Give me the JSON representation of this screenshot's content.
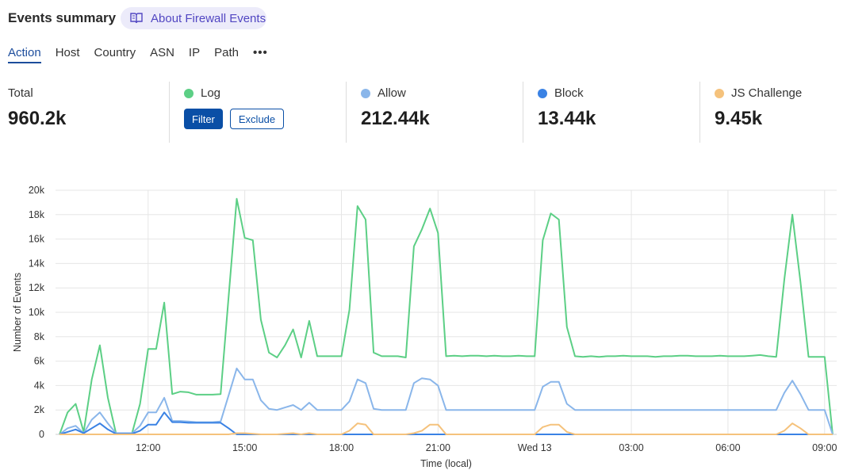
{
  "header": {
    "title": "Events summary",
    "link": "About Firewall Events"
  },
  "tabs": [
    "Action",
    "Host",
    "Country",
    "ASN",
    "IP",
    "Path"
  ],
  "stats": [
    {
      "label": "Total",
      "value": "960.2k"
    },
    {
      "label": "Log",
      "buttons": [
        "Filter",
        "Exclude"
      ]
    },
    {
      "label": "Allow",
      "value": "212.44k"
    },
    {
      "label": "Block",
      "value": "13.44k"
    },
    {
      "label": "JS Challenge",
      "value": "9.45k"
    }
  ],
  "chart_data": {
    "type": "line",
    "y_label": "Number of Events",
    "x_label": "Time (local)",
    "grid": true,
    "x": [
      9.25,
      9.5,
      9.75,
      10,
      10.25,
      10.5,
      10.75,
      11,
      11.25,
      11.5,
      11.75,
      12,
      12.25,
      12.5,
      12.75,
      13,
      13.25,
      13.5,
      13.75,
      14,
      14.25,
      14.5,
      14.75,
      15,
      15.25,
      15.5,
      15.75,
      16,
      16.25,
      16.5,
      16.75,
      17,
      17.25,
      17.5,
      17.75,
      18,
      18.25,
      18.5,
      18.75,
      19,
      19.25,
      19.5,
      19.75,
      20,
      20.25,
      20.5,
      20.75,
      21,
      21.25,
      21.5,
      21.75,
      22,
      22.25,
      22.5,
      22.75,
      23,
      23.25,
      23.5,
      23.75,
      24,
      24.25,
      24.5,
      24.75,
      25,
      25.25,
      25.5,
      25.75,
      26,
      26.25,
      26.5,
      26.75,
      27,
      27.25,
      27.5,
      27.75,
      28,
      28.25,
      28.5,
      28.75,
      29,
      29.25,
      29.5,
      29.75,
      30,
      30.25,
      30.5,
      30.75,
      31,
      31.25,
      31.5,
      31.75,
      32,
      32.25,
      32.5,
      32.75,
      33,
      33.25
    ],
    "xlim": [
      9.125,
      33.375
    ],
    "xticks": [
      {
        "value": 12,
        "label": "12:00"
      },
      {
        "value": 15,
        "label": "15:00"
      },
      {
        "value": 18,
        "label": "18:00"
      },
      {
        "value": 21,
        "label": "21:00"
      },
      {
        "value": 24,
        "label": "Wed 13"
      },
      {
        "value": 27,
        "label": "03:00"
      },
      {
        "value": 30,
        "label": "06:00"
      },
      {
        "value": 33,
        "label": "09:00"
      }
    ],
    "ylim": [
      0,
      20000
    ],
    "yticks": [
      0,
      {
        "value": 2000,
        "label": "2k"
      },
      {
        "value": 4000,
        "label": "4k"
      },
      {
        "value": 6000,
        "label": "6k"
      },
      {
        "value": 8000,
        "label": "8k"
      },
      {
        "value": 10000,
        "label": "10k"
      },
      {
        "value": 12000,
        "label": "12k"
      },
      {
        "value": 14000,
        "label": "14k"
      },
      {
        "value": 16000,
        "label": "16k"
      },
      {
        "value": 18000,
        "label": "18k"
      },
      {
        "value": 20000,
        "label": "20k"
      }
    ],
    "series": [
      {
        "color": "#5ccf85",
        "values": [
          0,
          1800,
          2500,
          200,
          4500,
          7300,
          3000,
          100,
          100,
          100,
          2500,
          7000,
          7000,
          10800,
          3300,
          3500,
          3450,
          3250,
          3250,
          3250,
          3300,
          11300,
          19300,
          16100,
          15900,
          9400,
          6700,
          6300,
          7300,
          8600,
          6300,
          9300,
          6400,
          6400,
          6400,
          6400,
          10200,
          18700,
          17600,
          6700,
          6400,
          6400,
          6400,
          6300,
          15400,
          16800,
          18500,
          16500,
          6400,
          6450,
          6400,
          6450,
          6450,
          6400,
          6450,
          6400,
          6400,
          6450,
          6400,
          6400,
          15900,
          18100,
          17600,
          8800,
          6400,
          6350,
          6400,
          6350,
          6400,
          6400,
          6450,
          6400,
          6400,
          6400,
          6350,
          6400,
          6400,
          6450,
          6450,
          6400,
          6400,
          6400,
          6450,
          6400,
          6400,
          6400,
          6450,
          6500,
          6400,
          6350,
          12700,
          18000,
          12500,
          6350,
          6350,
          6350,
          0
        ]
      },
      {
        "color": "#8ab6ea",
        "values": [
          0,
          500,
          700,
          100,
          1200,
          1800,
          900,
          100,
          100,
          100,
          700,
          1800,
          1800,
          3000,
          1100,
          1100,
          1050,
          1000,
          1000,
          1000,
          1050,
          3200,
          5400,
          4500,
          4500,
          2800,
          2100,
          2000,
          2200,
          2400,
          2000,
          2600,
          2000,
          2000,
          2000,
          2000,
          2700,
          4500,
          4200,
          2100,
          2000,
          2000,
          2000,
          2000,
          4200,
          4600,
          4500,
          4000,
          2000,
          2000,
          2000,
          2000,
          2000,
          2000,
          2000,
          2000,
          2000,
          2000,
          2000,
          2000,
          3900,
          4300,
          4300,
          2500,
          2000,
          2000,
          2000,
          2000,
          2000,
          2000,
          2000,
          2000,
          2000,
          2000,
          2000,
          2000,
          2000,
          2000,
          2000,
          2000,
          2000,
          2000,
          2000,
          2000,
          2000,
          2000,
          2000,
          2000,
          2000,
          2000,
          3400,
          4400,
          3300,
          2000,
          2000,
          2000,
          0
        ]
      },
      {
        "color": "#3a82e4",
        "values": [
          0,
          200,
          400,
          100,
          500,
          900,
          400,
          50,
          50,
          50,
          300,
          800,
          800,
          1800,
          1000,
          1000,
          950,
          950,
          950,
          950,
          950,
          500,
          0,
          0,
          0,
          0,
          0,
          0,
          0,
          0,
          0,
          0,
          0,
          0,
          0,
          0,
          0,
          0,
          0,
          0,
          0,
          0,
          0,
          0,
          0,
          0,
          0,
          0,
          0,
          0,
          0,
          0,
          0,
          0,
          0,
          0,
          0,
          0,
          0,
          0,
          0,
          0,
          0,
          0,
          0,
          0,
          0,
          0,
          0,
          0,
          0,
          0,
          0,
          0,
          0,
          0,
          0,
          0,
          0,
          0,
          0,
          0,
          0,
          0,
          0,
          0,
          0,
          0,
          0,
          0,
          0,
          0,
          0,
          0,
          0,
          0,
          0
        ]
      },
      {
        "color": "#f5c27c",
        "values": [
          0,
          0,
          0,
          0,
          0,
          0,
          0,
          0,
          0,
          0,
          0,
          0,
          0,
          0,
          0,
          0,
          0,
          0,
          0,
          0,
          0,
          0,
          100,
          100,
          50,
          0,
          0,
          0,
          50,
          100,
          0,
          100,
          0,
          0,
          0,
          0,
          300,
          900,
          800,
          0,
          0,
          0,
          0,
          0,
          100,
          300,
          800,
          800,
          0,
          0,
          0,
          0,
          0,
          0,
          0,
          0,
          0,
          0,
          0,
          0,
          600,
          800,
          800,
          200,
          0,
          0,
          0,
          0,
          0,
          0,
          0,
          0,
          0,
          0,
          0,
          0,
          0,
          0,
          0,
          0,
          0,
          0,
          0,
          0,
          0,
          0,
          0,
          0,
          0,
          0,
          300,
          900,
          500,
          0,
          0,
          0,
          0
        ]
      }
    ]
  }
}
